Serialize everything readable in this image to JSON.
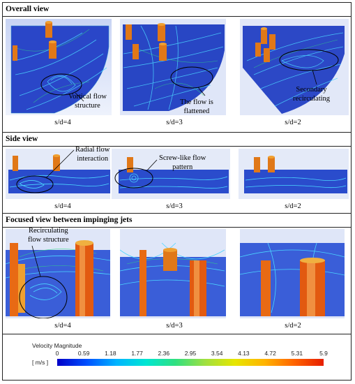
{
  "sections": {
    "overall": {
      "title": "Overall view",
      "captions": [
        "s/d=4",
        "s/d=3",
        "s/d=2"
      ],
      "annotations": {
        "a1": [
          "Vortical flow",
          "structure"
        ],
        "a2": [
          "The flow is",
          "flattened"
        ],
        "a3": [
          "Secondary",
          "recirculating"
        ]
      }
    },
    "side": {
      "title": "Side view",
      "captions": [
        "s/d=4",
        "s/d=3",
        "s/d=2"
      ],
      "annotations": {
        "a1": [
          "Radial flow",
          "interaction"
        ],
        "a2": [
          "Screw-like flow",
          "pattern"
        ]
      }
    },
    "focused": {
      "title": "Focused view between impinging jets",
      "captions": [
        "s/d=4",
        "s/d=3",
        "s/d=2"
      ],
      "annotations": {
        "a1": [
          "Recirculating",
          "flow structure"
        ]
      }
    }
  },
  "legend": {
    "title": "Velocity Magnitude",
    "unit": "[ m/s ]",
    "ticks": [
      "0",
      "0.59",
      "1.18",
      "1.77",
      "2.36",
      "2.95",
      "3.54",
      "4.13",
      "4.72",
      "5.31",
      "5.9"
    ],
    "colors": [
      "#0000c8",
      "#0050ff",
      "#00b4ff",
      "#00e6d2",
      "#30e080",
      "#a0e040",
      "#e6e600",
      "#ffb400",
      "#ff6400",
      "#e61e00"
    ]
  }
}
